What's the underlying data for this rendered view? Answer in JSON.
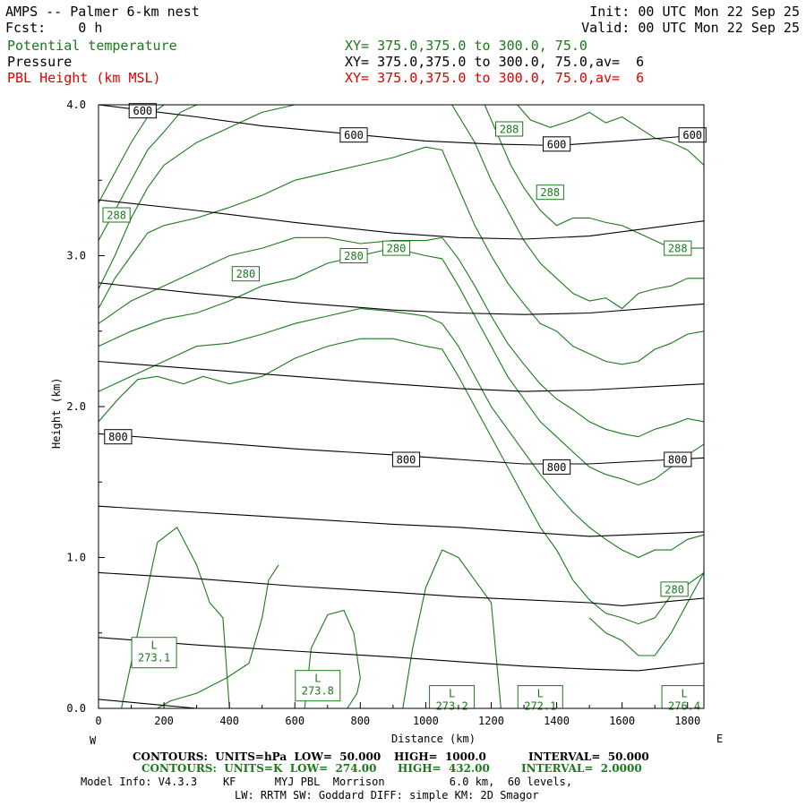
{
  "header": {
    "title": "AMPS -- Palmer 6-km nest",
    "fcst": "Fcst:    0 h",
    "init": "Init: 00 UTC Mon 22 Sep 25",
    "valid": "Valid: 00 UTC Mon 22 Sep 25",
    "field1_name": "Potential temperature",
    "field1_xy": "XY= 375.0,375.0 to 300.0, 75.0",
    "field2_name": "Pressure",
    "field2_xy": "XY= 375.0,375.0 to 300.0, 75.0,av=  6",
    "field3_name": "PBL Height (km MSL)",
    "field3_xy": "XY= 375.0,375.0 to 300.0, 75.0,av=  6"
  },
  "footer": {
    "line1_a": "CONTOURS:  UNITS=hPa  LOW=  50.000",
    "line1_b": "HIGH=  1000.0",
    "line1_c": "INTERVAL=  50.000",
    "line2_a": "CONTOURS:  UNITS=K  LOW=  274.00",
    "line2_b": "HIGH=  432.00",
    "line2_c": "INTERVAL=  2.0000",
    "line3": "Model Info: V4.3.3    KF      MYJ PBL  Morrison          6.0 km,  60 levels,",
    "line4": "LW: RRTM SW: Goddard DIFF: simple KM: 2D Smagor"
  },
  "colors": {
    "potential_temperature": "#1a7a1a",
    "pressure": "#000000",
    "pbl": "#e00000"
  },
  "chart_data": {
    "type": "line",
    "title": "",
    "xlabel": "Distance (km)",
    "ylabel": "Height (km)",
    "xlim": [
      0,
      1850
    ],
    "ylim": [
      0,
      4.0
    ],
    "x_ticks": [
      "0",
      "200",
      "400",
      "600",
      "800",
      "1000",
      "1200",
      "1400",
      "1600",
      "1800"
    ],
    "y_ticks": [
      "0.0",
      "1.0",
      "2.0",
      "3.0",
      "4.0"
    ],
    "x_start_label": "W",
    "x_end_label": "E",
    "pressure_contours_hPa": [
      {
        "level": 600,
        "x": [
          0,
          300,
          500,
          800,
          1000,
          1200,
          1400,
          1600,
          1850
        ],
        "y": [
          4.0,
          3.92,
          3.86,
          3.8,
          3.76,
          3.74,
          3.73,
          3.76,
          3.8
        ]
      },
      {
        "level": 650,
        "x": [
          0,
          300,
          600,
          900,
          1100,
          1300,
          1500,
          1850
        ],
        "y": [
          3.37,
          3.3,
          3.22,
          3.15,
          3.12,
          3.11,
          3.13,
          3.23
        ]
      },
      {
        "level": 700,
        "x": [
          0,
          300,
          600,
          900,
          1100,
          1300,
          1500,
          1850
        ],
        "y": [
          2.82,
          2.75,
          2.69,
          2.64,
          2.62,
          2.61,
          2.62,
          2.68
        ]
      },
      {
        "level": 750,
        "x": [
          0,
          300,
          600,
          900,
          1100,
          1300,
          1500,
          1850
        ],
        "y": [
          2.3,
          2.25,
          2.2,
          2.15,
          2.12,
          2.1,
          2.11,
          2.15
        ]
      },
      {
        "level": 800,
        "x": [
          0,
          300,
          600,
          900,
          1100,
          1300,
          1500,
          1850
        ],
        "y": [
          1.82,
          1.77,
          1.72,
          1.68,
          1.65,
          1.62,
          1.62,
          1.66
        ]
      },
      {
        "level": 850,
        "x": [
          0,
          300,
          600,
          900,
          1100,
          1300,
          1500,
          1850
        ],
        "y": [
          1.34,
          1.3,
          1.26,
          1.22,
          1.2,
          1.17,
          1.14,
          1.17
        ]
      },
      {
        "level": 900,
        "x": [
          0,
          300,
          600,
          900,
          1100,
          1300,
          1500,
          1600,
          1850
        ],
        "y": [
          0.9,
          0.86,
          0.81,
          0.77,
          0.74,
          0.72,
          0.7,
          0.68,
          0.73
        ]
      },
      {
        "level": 950,
        "x": [
          0,
          300,
          600,
          900,
          1100,
          1300,
          1500,
          1650,
          1850
        ],
        "y": [
          0.47,
          0.42,
          0.38,
          0.34,
          0.31,
          0.28,
          0.26,
          0.25,
          0.3
        ]
      },
      {
        "level": 1000,
        "x": [
          0,
          150,
          300,
          400
        ],
        "y": [
          0.06,
          0.03,
          0.0,
          -0.02
        ]
      }
    ],
    "pressure_labels": [
      {
        "text": "600",
        "x": 135,
        "y": 3.96
      },
      {
        "text": "600",
        "x": 780,
        "y": 3.8
      },
      {
        "text": "600",
        "x": 1400,
        "y": 3.74
      },
      {
        "text": "600",
        "x": 1815,
        "y": 3.8
      },
      {
        "text": "800",
        "x": 60,
        "y": 1.8
      },
      {
        "text": "800",
        "x": 940,
        "y": 1.65
      },
      {
        "text": "800",
        "x": 1400,
        "y": 1.6
      },
      {
        "text": "800",
        "x": 1770,
        "y": 1.65
      }
    ],
    "theta_contours_K": [
      {
        "x": [
          0,
          60,
          120,
          180,
          260,
          320,
          400,
          500,
          600,
          700,
          800,
          900,
          1000,
          1050,
          1100,
          1150,
          1200,
          1250,
          1300,
          1350,
          1400,
          1450,
          1500,
          1550,
          1600,
          1650,
          1700,
          1750,
          1800,
          1850
        ],
        "y": [
          1.9,
          2.05,
          2.18,
          2.2,
          2.15,
          2.2,
          2.15,
          2.2,
          2.32,
          2.4,
          2.45,
          2.45,
          2.4,
          2.38,
          2.2,
          2.0,
          1.8,
          1.6,
          1.4,
          1.2,
          1.05,
          0.85,
          0.72,
          0.63,
          0.6,
          0.56,
          0.6,
          0.75,
          0.82,
          0.9
        ]
      },
      {
        "x": [
          0,
          100,
          200,
          300,
          400,
          500,
          600,
          700,
          800,
          900,
          1000,
          1050,
          1100,
          1150,
          1200,
          1250,
          1300,
          1350,
          1400,
          1450,
          1500,
          1550,
          1600,
          1650,
          1700,
          1750,
          1800,
          1850
        ],
        "y": [
          2.1,
          2.2,
          2.3,
          2.4,
          2.42,
          2.48,
          2.55,
          2.6,
          2.65,
          2.63,
          2.6,
          2.55,
          2.4,
          2.2,
          2.0,
          1.85,
          1.7,
          1.55,
          1.42,
          1.3,
          1.2,
          1.12,
          1.05,
          1.0,
          1.05,
          1.05,
          1.12,
          1.15
        ]
      },
      {
        "x": [
          0,
          100,
          200,
          300,
          400,
          500,
          600,
          700,
          800,
          900,
          1000,
          1050,
          1100,
          1150,
          1200,
          1250,
          1300,
          1350,
          1400,
          1450,
          1500,
          1550,
          1600,
          1650,
          1700,
          1750,
          1800,
          1850
        ],
        "y": [
          2.4,
          2.5,
          2.58,
          2.62,
          2.7,
          2.8,
          2.85,
          2.95,
          3.0,
          3.05,
          3.0,
          2.98,
          2.8,
          2.6,
          2.4,
          2.2,
          2.05,
          1.9,
          1.8,
          1.7,
          1.6,
          1.55,
          1.52,
          1.48,
          1.52,
          1.6,
          1.68,
          1.75
        ]
      },
      {
        "x": [
          0,
          100,
          200,
          300,
          400,
          500,
          600,
          700,
          800,
          900,
          1000,
          1050,
          1100,
          1150,
          1200,
          1250,
          1300,
          1350,
          1400,
          1450,
          1500,
          1550,
          1600,
          1650,
          1700,
          1750,
          1800,
          1850
        ],
        "y": [
          2.55,
          2.7,
          2.8,
          2.9,
          3.0,
          3.05,
          3.12,
          3.12,
          3.08,
          3.1,
          3.1,
          3.12,
          2.98,
          2.8,
          2.6,
          2.42,
          2.28,
          2.15,
          2.05,
          1.98,
          1.9,
          1.85,
          1.82,
          1.8,
          1.85,
          1.88,
          1.92,
          1.9
        ]
      },
      {
        "x": [
          0,
          50,
          100,
          150,
          200,
          300,
          400,
          500,
          600,
          700,
          800,
          900,
          1000,
          1050,
          1100,
          1150,
          1200,
          1250,
          1300,
          1350,
          1400,
          1450,
          1500,
          1550,
          1600,
          1650,
          1700,
          1750,
          1800,
          1850
        ],
        "y": [
          2.65,
          2.85,
          3.0,
          3.15,
          3.2,
          3.25,
          3.32,
          3.4,
          3.5,
          3.55,
          3.6,
          3.65,
          3.72,
          3.7,
          3.45,
          3.2,
          3.0,
          2.82,
          2.68,
          2.55,
          2.5,
          2.4,
          2.35,
          2.3,
          2.28,
          2.3,
          2.38,
          2.42,
          2.48,
          2.5
        ]
      },
      {
        "x": [
          0,
          50,
          100,
          150,
          200,
          300,
          400,
          500,
          600
        ],
        "y": [
          2.78,
          3.0,
          3.25,
          3.45,
          3.6,
          3.75,
          3.85,
          3.95,
          4.0
        ]
      },
      {
        "x": [
          0,
          50,
          100,
          150,
          200,
          250,
          300
        ],
        "y": [
          3.1,
          3.3,
          3.5,
          3.7,
          3.82,
          3.95,
          4.0
        ]
      },
      {
        "x": [
          0,
          50,
          100,
          150,
          200
        ],
        "y": [
          3.35,
          3.55,
          3.75,
          3.92,
          4.0
        ]
      },
      {
        "x": [
          1080,
          1150,
          1200,
          1250,
          1300,
          1350,
          1400,
          1450,
          1500,
          1550,
          1600,
          1650,
          1700,
          1750,
          1800,
          1850
        ],
        "y": [
          4.0,
          3.75,
          3.5,
          3.3,
          3.1,
          2.95,
          2.85,
          2.75,
          2.7,
          2.72,
          2.65,
          2.75,
          2.78,
          2.8,
          2.85,
          2.85
        ]
      },
      {
        "x": [
          1180,
          1220,
          1260,
          1300,
          1350,
          1400,
          1450,
          1500,
          1550,
          1600,
          1650,
          1700,
          1750,
          1800,
          1850
        ],
        "y": [
          4.0,
          3.8,
          3.6,
          3.45,
          3.3,
          3.2,
          3.25,
          3.25,
          3.22,
          3.2,
          3.15,
          3.1,
          3.05,
          3.05,
          3.05
        ]
      },
      {
        "x": [
          1280,
          1320,
          1380,
          1450,
          1500,
          1550,
          1600,
          1650,
          1700,
          1750,
          1800,
          1850
        ],
        "y": [
          4.0,
          3.9,
          3.85,
          3.9,
          3.95,
          3.88,
          3.92,
          3.85,
          3.78,
          3.75,
          3.7,
          3.6
        ]
      },
      {
        "x": [
          70,
          120,
          180,
          240,
          300,
          340,
          380,
          400
        ],
        "y": [
          0.0,
          0.5,
          1.1,
          1.2,
          0.95,
          0.7,
          0.6,
          0.0
        ]
      },
      {
        "x": [
          180,
          220,
          300,
          390,
          460,
          500,
          520,
          550
        ],
        "y": [
          0.0,
          0.05,
          0.1,
          0.2,
          0.3,
          0.6,
          0.85,
          0.95
        ]
      },
      {
        "x": [
          630,
          650,
          700,
          750,
          780,
          800,
          790,
          760
        ],
        "y": [
          0.0,
          0.4,
          0.62,
          0.65,
          0.5,
          0.2,
          0.1,
          0.0
        ]
      },
      {
        "x": [
          930,
          960,
          1000,
          1050,
          1100,
          1150,
          1200,
          1230
        ],
        "y": [
          0.0,
          0.4,
          0.8,
          1.05,
          1.0,
          0.85,
          0.7,
          0.0
        ]
      },
      {
        "x": [
          1500,
          1550,
          1600,
          1650,
          1700,
          1750,
          1800,
          1850
        ],
        "y": [
          0.6,
          0.5,
          0.45,
          0.35,
          0.35,
          0.5,
          0.7,
          0.9
        ]
      }
    ],
    "theta_labels": [
      {
        "text": "288",
        "x": 55,
        "y": 3.27
      },
      {
        "text": "280",
        "x": 450,
        "y": 2.88
      },
      {
        "text": "280",
        "x": 780,
        "y": 3.0
      },
      {
        "text": "280",
        "x": 910,
        "y": 3.05
      },
      {
        "text": "288",
        "x": 1255,
        "y": 3.84
      },
      {
        "text": "288",
        "x": 1380,
        "y": 3.42
      },
      {
        "text": "288",
        "x": 1770,
        "y": 3.05
      },
      {
        "text": "280",
        "x": 1760,
        "y": 0.79
      }
    ],
    "low_markers": [
      {
        "letter": "L",
        "value": "273.1",
        "x": 170,
        "y": 0.37
      },
      {
        "letter": "L",
        "value": "273.8",
        "x": 670,
        "y": 0.15
      },
      {
        "letter": "L",
        "value": "273.2",
        "x": 1080,
        "y": 0.05
      },
      {
        "letter": "L",
        "value": "272.1",
        "x": 1350,
        "y": 0.05
      },
      {
        "letter": "L",
        "value": "276.4",
        "x": 1790,
        "y": 0.05
      }
    ]
  }
}
